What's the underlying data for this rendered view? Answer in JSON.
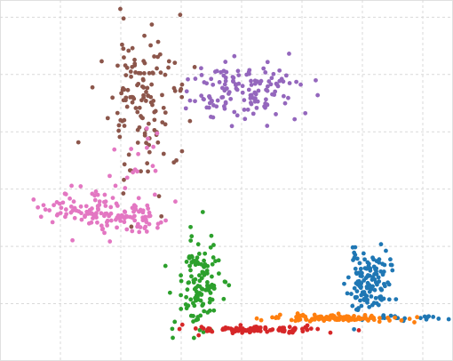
{
  "chart_data": {
    "type": "scatter",
    "title": "",
    "xlabel": "",
    "ylabel": "",
    "xlim": [
      0,
      7.5
    ],
    "ylim": [
      0,
      6.3
    ],
    "grid": true,
    "legend": "none",
    "axis_ticks_visible": false,
    "series": [
      {
        "color": "#1f77b4",
        "clusters": [
          {
            "center": [
              6.1,
              1.35
            ],
            "spread": [
              0.17,
              0.28
            ],
            "count": 130,
            "seed": 11
          },
          {
            "center": [
              6.4,
              0.75
            ],
            "spread": [
              0.55,
              0.02
            ],
            "count": 25,
            "seed": 12
          }
        ]
      },
      {
        "color": "#ff7f0e",
        "clusters": [
          {
            "center": [
              5.5,
              0.75
            ],
            "spread": [
              0.55,
              0.03
            ],
            "count": 110,
            "seed": 21
          }
        ]
      },
      {
        "color": "#2ca02c",
        "clusters": [
          {
            "center": [
              3.3,
              1.35
            ],
            "spread": [
              0.17,
              0.4
            ],
            "count": 130,
            "seed": 31
          }
        ]
      },
      {
        "color": "#d62728",
        "clusters": [
          {
            "center": [
              4.3,
              0.55
            ],
            "spread": [
              0.5,
              0.03
            ],
            "count": 110,
            "seed": 41
          }
        ]
      },
      {
        "color": "#9467bd",
        "clusters": [
          {
            "center": [
              3.95,
              4.7
            ],
            "spread": [
              0.45,
              0.25
            ],
            "count": 140,
            "seed": 51
          }
        ]
      },
      {
        "color": "#8c564b",
        "clusters": [
          {
            "center": [
              2.3,
              4.55
            ],
            "spread": [
              0.38,
              0.65
            ],
            "count": 140,
            "seed": 61
          }
        ]
      },
      {
        "color": "#e377c2",
        "clusters": [
          {
            "center": [
              1.35,
              2.65
            ],
            "spread": [
              0.38,
              0.18
            ],
            "count": 80,
            "seed": 71
          },
          {
            "center": [
              2.15,
              2.45
            ],
            "spread": [
              0.3,
              0.18
            ],
            "count": 60,
            "seed": 72
          },
          {
            "center": [
              2.4,
              3.3
            ],
            "spread": [
              0.3,
              0.35
            ],
            "count": 20,
            "seed": 73
          }
        ]
      }
    ]
  }
}
